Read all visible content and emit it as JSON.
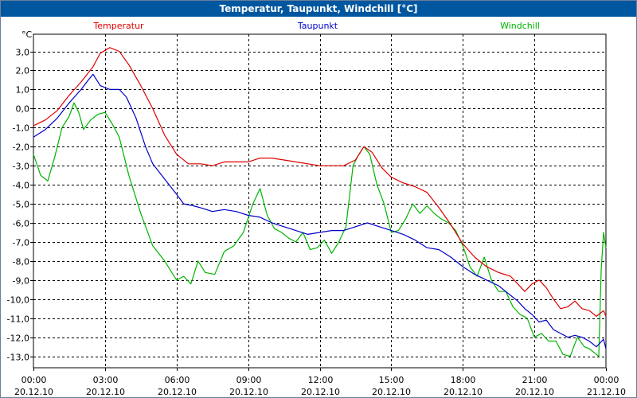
{
  "window": {
    "title": "Temperatur, Taupunkt, Windchill [°C]"
  },
  "colors": {
    "title_bar": "#00579f",
    "temperatur": "#e00000",
    "taupunkt": "#0000c8",
    "windchill": "#00b400"
  },
  "chart_data": {
    "type": "line",
    "title": "Temperatur, Taupunkt, Windchill [°C]",
    "ylabel": "°C",
    "ylim": [
      -13.6,
      3.9
    ],
    "yticks": [
      3.0,
      2.0,
      1.0,
      0.0,
      -1.0,
      -2.0,
      -3.0,
      -4.0,
      -5.0,
      -6.0,
      -7.0,
      -8.0,
      -9.0,
      -10.0,
      -11.0,
      -12.0,
      -13.0
    ],
    "ytick_labels": [
      "3,0",
      "2,0",
      "1,0",
      "0,0",
      "-1,0",
      "-2,0",
      "-3,0",
      "-4,0",
      "-5,0",
      "-6,0",
      "-7,0",
      "-8,0",
      "-9,0",
      "-10,0",
      "-11,0",
      "-12,0",
      "-13,0"
    ],
    "xlim": [
      0,
      24
    ],
    "xticks": [
      {
        "h": 0,
        "time": "00:00",
        "date": "20.12.10"
      },
      {
        "h": 3,
        "time": "03:00",
        "date": "20.12.10"
      },
      {
        "h": 6,
        "time": "06:00",
        "date": "20.12.10"
      },
      {
        "h": 9,
        "time": "09:00",
        "date": "20.12.10"
      },
      {
        "h": 12,
        "time": "12:00",
        "date": "20.12.10"
      },
      {
        "h": 15,
        "time": "15:00",
        "date": "20.12.10"
      },
      {
        "h": 18,
        "time": "18:00",
        "date": "20.12.10"
      },
      {
        "h": 21,
        "time": "21:00",
        "date": "20.12.10"
      },
      {
        "h": 24,
        "time": "00:00",
        "date": "21.12.10"
      }
    ],
    "grid": true,
    "series": [
      {
        "name": "Temperatur",
        "x": [
          0,
          0.5,
          1,
          1.5,
          2,
          2.5,
          2.8,
          3.2,
          3.6,
          4,
          4.5,
          5,
          5.5,
          6,
          6.5,
          7,
          7.5,
          8,
          8.5,
          9,
          9.5,
          10,
          10.5,
          11,
          11.5,
          12,
          12.5,
          13,
          13.5,
          13.85,
          14.2,
          14.6,
          15,
          15.5,
          16,
          16.5,
          17,
          17.5,
          18,
          18.5,
          19,
          19.5,
          20,
          20.3,
          20.6,
          20.9,
          21.2,
          21.5,
          21.8,
          22.1,
          22.4,
          22.7,
          23,
          23.3,
          23.6,
          23.9,
          24
        ],
        "y": [
          -0.9,
          -0.6,
          -0.1,
          0.7,
          1.4,
          2.2,
          2.9,
          3.2,
          3.0,
          2.3,
          1.2,
          0.0,
          -1.4,
          -2.4,
          -2.9,
          -2.9,
          -3.0,
          -2.8,
          -2.8,
          -2.8,
          -2.6,
          -2.6,
          -2.7,
          -2.8,
          -2.9,
          -3.0,
          -3.0,
          -3.0,
          -2.7,
          -2.0,
          -2.3,
          -3.1,
          -3.6,
          -3.9,
          -4.1,
          -4.4,
          -5.2,
          -6.1,
          -7.1,
          -7.8,
          -8.3,
          -8.6,
          -8.8,
          -9.2,
          -9.6,
          -9.2,
          -9.0,
          -9.4,
          -10.0,
          -10.5,
          -10.4,
          -10.1,
          -10.5,
          -10.6,
          -10.9,
          -10.6,
          -10.9
        ]
      },
      {
        "name": "Taupunkt",
        "x": [
          0,
          0.5,
          1,
          1.5,
          2,
          2.3,
          2.5,
          2.8,
          3.2,
          3.6,
          3.9,
          4.3,
          4.7,
          5,
          5.5,
          6,
          6.3,
          6.7,
          7,
          7.5,
          8,
          8.5,
          9,
          9.5,
          10,
          10.5,
          11,
          11.5,
          12,
          12.5,
          13,
          13.5,
          14,
          14.5,
          15,
          15.5,
          16,
          16.5,
          17,
          17.5,
          18,
          18.5,
          19,
          19.5,
          20,
          20.3,
          20.6,
          20.9,
          21.2,
          21.5,
          21.8,
          22.1,
          22.4,
          22.7,
          23,
          23.3,
          23.6,
          23.9,
          24
        ],
        "y": [
          -1.5,
          -1.1,
          -0.5,
          0.3,
          1.0,
          1.5,
          1.8,
          1.2,
          1.0,
          1.0,
          0.6,
          -0.5,
          -2.0,
          -2.9,
          -3.7,
          -4.5,
          -5.0,
          -5.1,
          -5.2,
          -5.4,
          -5.3,
          -5.4,
          -5.6,
          -5.7,
          -6.0,
          -6.2,
          -6.4,
          -6.6,
          -6.5,
          -6.4,
          -6.4,
          -6.2,
          -6.0,
          -6.2,
          -6.4,
          -6.6,
          -6.9,
          -7.3,
          -7.4,
          -7.8,
          -8.3,
          -8.7,
          -9.0,
          -9.3,
          -9.8,
          -10.1,
          -10.5,
          -10.8,
          -11.2,
          -11.1,
          -11.6,
          -11.8,
          -12.0,
          -11.9,
          -12.0,
          -12.2,
          -12.5,
          -12.1,
          -12.6
        ]
      },
      {
        "name": "Windchill",
        "x": [
          0,
          0.3,
          0.6,
          0.9,
          1.2,
          1.5,
          1.7,
          1.9,
          2.1,
          2.4,
          2.7,
          3.0,
          3.3,
          3.6,
          4.0,
          4.5,
          5.0,
          5.5,
          6.0,
          6.3,
          6.6,
          6.9,
          7.2,
          7.6,
          8.0,
          8.4,
          8.8,
          9.2,
          9.5,
          9.8,
          10.1,
          10.4,
          10.7,
          11.0,
          11.3,
          11.6,
          11.9,
          12.2,
          12.5,
          12.8,
          13.1,
          13.4,
          13.6,
          13.85,
          14.1,
          14.4,
          14.7,
          15.0,
          15.3,
          15.6,
          15.9,
          16.2,
          16.5,
          16.8,
          17.1,
          17.4,
          17.7,
          18.0,
          18.3,
          18.6,
          18.9,
          19.2,
          19.5,
          19.8,
          20.1,
          20.4,
          20.7,
          21.0,
          21.3,
          21.6,
          21.9,
          22.2,
          22.5,
          22.8,
          23.1,
          23.3,
          23.5,
          23.7,
          23.8,
          23.9,
          24.0
        ],
        "y": [
          -2.4,
          -3.5,
          -3.8,
          -2.5,
          -1.0,
          -0.4,
          0.3,
          -0.2,
          -1.1,
          -0.6,
          -0.3,
          -0.2,
          -0.8,
          -1.5,
          -3.5,
          -5.5,
          -7.2,
          -8.0,
          -9.0,
          -8.8,
          -9.2,
          -8.0,
          -8.6,
          -8.7,
          -7.5,
          -7.2,
          -6.5,
          -5.0,
          -4.2,
          -5.6,
          -6.3,
          -6.5,
          -6.8,
          -7.0,
          -6.5,
          -7.4,
          -7.3,
          -6.9,
          -7.6,
          -7.0,
          -6.2,
          -3.0,
          -2.5,
          -2.0,
          -2.4,
          -4.0,
          -5.0,
          -6.5,
          -6.4,
          -5.8,
          -5.0,
          -5.5,
          -5.1,
          -5.5,
          -5.8,
          -6.0,
          -6.4,
          -7.2,
          -8.3,
          -8.8,
          -7.8,
          -9.0,
          -9.6,
          -9.6,
          -10.4,
          -10.8,
          -11.0,
          -12.0,
          -11.8,
          -12.2,
          -12.2,
          -12.9,
          -13.0,
          -12.0,
          -12.5,
          -12.6,
          -12.8,
          -13.0,
          -8.5,
          -6.5,
          -7.3
        ]
      }
    ]
  }
}
